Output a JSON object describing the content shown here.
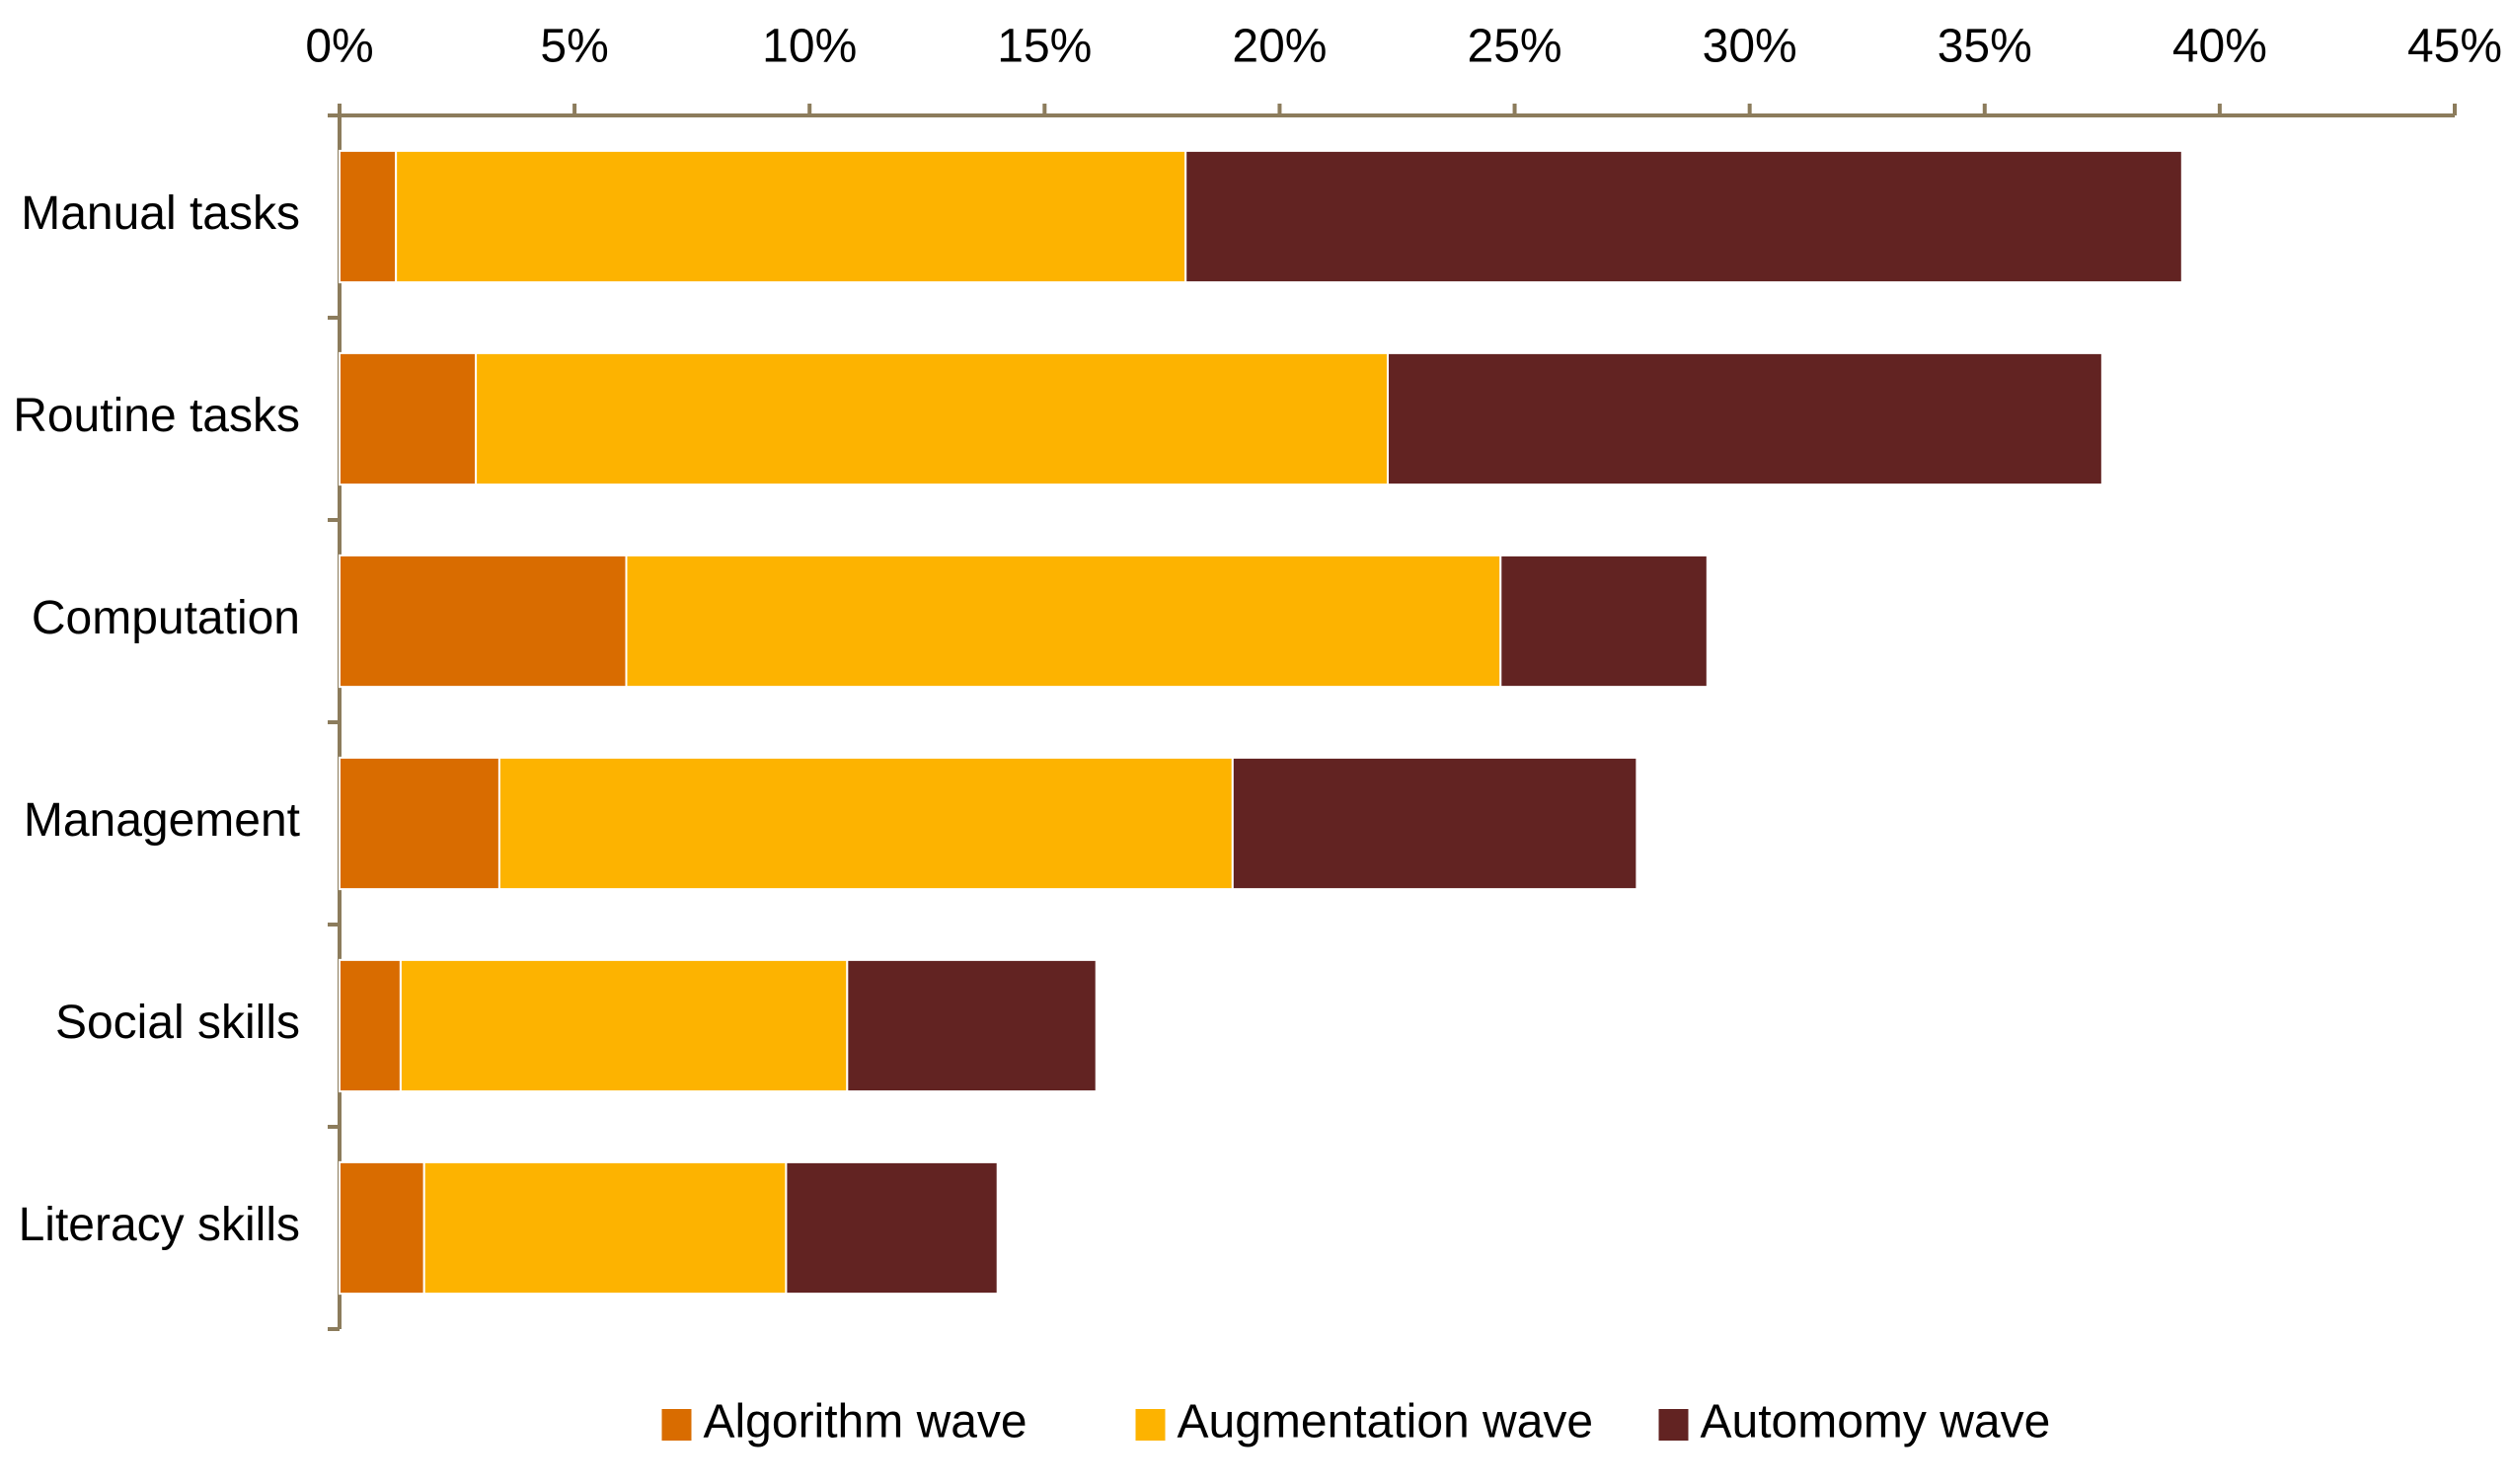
{
  "chart_data": {
    "type": "stacked-bar-horizontal",
    "categories": [
      "Manual tasks",
      "Routine tasks",
      "Computation",
      "Management",
      "Social skills",
      "Literacy skills"
    ],
    "series": [
      {
        "name": "Algorithm wave",
        "color": "#d96c00",
        "values": [
          1.2,
          2.9,
          6.1,
          3.4,
          1.3,
          1.8
        ]
      },
      {
        "name": "Augmentation wave",
        "color": "#fdb300",
        "values": [
          16.8,
          19.4,
          18.6,
          15.6,
          9.5,
          7.7
        ]
      },
      {
        "name": "Automomy wave",
        "color": "#622322",
        "values": [
          21.2,
          15.2,
          4.4,
          8.6,
          5.3,
          4.5
        ]
      }
    ],
    "xlim": [
      0,
      45
    ],
    "xticks": [
      {
        "value": 0,
        "label": "0%"
      },
      {
        "value": 5,
        "label": "5%"
      },
      {
        "value": 10,
        "label": "10%"
      },
      {
        "value": 15,
        "label": "15%"
      },
      {
        "value": 20,
        "label": "20%"
      },
      {
        "value": 25,
        "label": "25%"
      },
      {
        "value": 30,
        "label": "30%"
      },
      {
        "value": 35,
        "label": "35%"
      },
      {
        "value": 40,
        "label": "40%"
      },
      {
        "value": 45,
        "label": "45%"
      }
    ],
    "legend": "bottom"
  }
}
